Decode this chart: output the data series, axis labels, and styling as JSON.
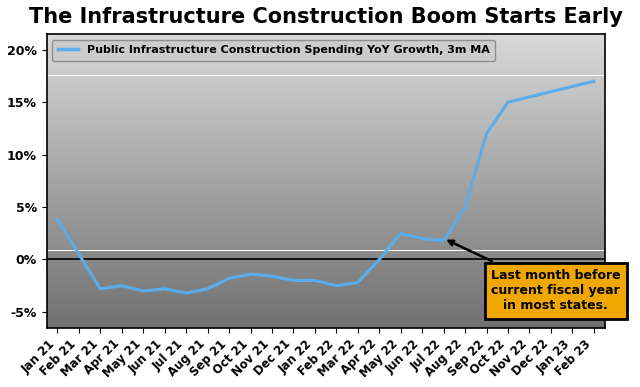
{
  "title": "The Infrastructure Construction Boom Starts Early",
  "legend_label": "Public Infrastructure Construction Spending YoY Growth, 3m MA",
  "line_color": "#5aadea",
  "background_top": "#d8d8d8",
  "background_bottom": "#707070",
  "ylim": [
    -0.065,
    0.215
  ],
  "yticks": [
    -0.05,
    0.0,
    0.05,
    0.1,
    0.15,
    0.2
  ],
  "ytick_labels": [
    "-5%",
    "0%",
    "5%",
    "10%",
    "15%",
    "20%"
  ],
  "xlabels": [
    "Jan 21",
    "Feb 21",
    "Mar 21",
    "Apr 21",
    "May 21",
    "Jun 21",
    "Jul 21",
    "Aug 21",
    "Sep 21",
    "Oct 21",
    "Nov 21",
    "Dec 21",
    "Jan 22",
    "Feb 22",
    "Mar 22",
    "Apr 22",
    "May 22",
    "Jun 22",
    "Jul 22",
    "Aug 22",
    "Sep 22",
    "Oct 22",
    "Nov 22",
    "Dec 22",
    "Jan 23",
    "Feb 23"
  ],
  "y_values": [
    0.038,
    0.005,
    -0.028,
    -0.025,
    -0.03,
    -0.028,
    -0.032,
    -0.028,
    -0.018,
    -0.014,
    -0.016,
    -0.02,
    -0.02,
    -0.025,
    -0.022,
    0.0,
    0.025,
    0.02,
    0.018,
    0.05,
    0.12,
    0.15,
    0.155,
    0.16,
    0.165,
    0.17
  ],
  "annotation_text": "Last month before\ncurrent fiscal year\nin most states.",
  "annotation_box_color": "#f0a800",
  "annotation_arrow_xi": 18,
  "annotation_arrow_yi": 0.02,
  "title_fontsize": 15,
  "axis_label_fontsize": 8.5,
  "fig_width": 6.4,
  "fig_height": 3.87,
  "dpi": 100
}
